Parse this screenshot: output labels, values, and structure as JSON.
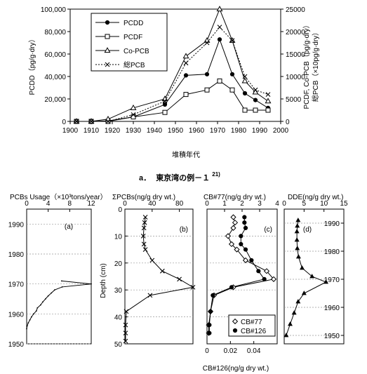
{
  "top": {
    "caption_prefix": "a．",
    "caption_text": "東京湾の例－１",
    "caption_sup": "21)",
    "xlabel": "堆積年代",
    "ylabel_left": "PCDD（pg/g·dry）",
    "ylabel_right_1": "PCDF, Co-PCB（pg/g·dry）",
    "ylabel_right_2": "総PCB（×10pg/g·dry）"
  },
  "bottom": {
    "panels": [
      {
        "title": "PCBs Usage（×10³tons/year）",
        "tag": "(a)"
      },
      {
        "title": "ΣPCBs(ng/g dry wt.)",
        "tag": "(b)"
      },
      {
        "title": "CB#77(ng/g dry wt.)",
        "tag": "(c)"
      },
      {
        "title": "DDE(ng/g dry wt.)",
        "tag": "(d)"
      }
    ],
    "depth_label": "Depth (cm)",
    "cb126_label": "CB#126(ng/g dry wt.)"
  },
  "chart_data": [
    {
      "type": "line",
      "xlabel": "堆積年代",
      "ylabel": "PCDD（pg/g·dry）",
      "y2label": "PCDF, Co-PCB（pg/g·dry） 総PCB（×10pg/g·dry）",
      "xlim": [
        1900,
        2000
      ],
      "xticks": [
        1900,
        1910,
        1920,
        1930,
        1940,
        1950,
        1960,
        1970,
        1980,
        1990,
        2000
      ],
      "ylim": [
        0,
        100000
      ],
      "yticks": [
        0,
        20000,
        40000,
        60000,
        80000,
        100000
      ],
      "ytick_labels": [
        "0",
        "20,000",
        "40,000",
        "60,000",
        "80,000",
        "100,000"
      ],
      "y2lim": [
        0,
        25000
      ],
      "y2ticks": [
        0,
        5000,
        10000,
        15000,
        20000,
        25000
      ],
      "legend": "top-left",
      "series": [
        {
          "name": "PCDD",
          "axis": "left",
          "marker": "filled-circle",
          "line": "solid",
          "x": [
            1903,
            1910,
            1918,
            1930,
            1945,
            1955,
            1965,
            1971,
            1977,
            1983,
            1988,
            1994
          ],
          "y": [
            0,
            0,
            500,
            4000,
            15000,
            41000,
            42000,
            73000,
            42000,
            25000,
            19000,
            12000
          ]
        },
        {
          "name": "PCDF",
          "axis": "right",
          "marker": "open-square",
          "line": "solid",
          "x": [
            1903,
            1910,
            1918,
            1930,
            1945,
            1955,
            1965,
            1971,
            1977,
            1983,
            1988,
            1994
          ],
          "y": [
            0,
            0,
            0,
            1000,
            2000,
            6000,
            7000,
            9000,
            7000,
            2500,
            2500,
            2500
          ]
        },
        {
          "name": "Co-PCB",
          "axis": "right",
          "marker": "open-triangle",
          "line": "solid",
          "x": [
            1903,
            1910,
            1918,
            1930,
            1945,
            1955,
            1965,
            1971,
            1977,
            1983,
            1988,
            1994
          ],
          "y": [
            0,
            0,
            500,
            3000,
            5000,
            14500,
            18000,
            25000,
            18000,
            9000,
            6500,
            4500
          ]
        },
        {
          "name": "総PCB",
          "axis": "right",
          "marker": "x",
          "line": "dotted",
          "x": [
            1903,
            1910,
            1918,
            1930,
            1945,
            1955,
            1965,
            1971,
            1977,
            1983,
            1988,
            1994
          ],
          "y": [
            0,
            0,
            0,
            1500,
            4500,
            13000,
            17500,
            21000,
            18000,
            10000,
            7000,
            6000
          ]
        }
      ]
    },
    {
      "type": "line",
      "title": "PCBs Usage（×10³tons/year）",
      "xlim": [
        0,
        12
      ],
      "xticks": [
        0,
        4,
        8,
        12
      ],
      "ylim": [
        1950,
        1995
      ],
      "yticks": [
        1950,
        1960,
        1970,
        1980,
        1990
      ],
      "annotation": "(a)",
      "series": [
        {
          "name": "",
          "x": [
            0,
            0.1,
            0.3,
            0.6,
            0.9,
            1.3,
            1.8,
            2.0,
            2.6,
            3.0,
            3.5,
            4.0,
            4.6,
            5.2,
            6.6,
            12,
            6.5
          ],
          "y": [
            1955,
            1956,
            1957,
            1958,
            1959,
            1960,
            1961,
            1962,
            1963,
            1964,
            1965,
            1966,
            1967,
            1968,
            1969,
            1970,
            1971
          ]
        }
      ]
    },
    {
      "type": "line",
      "title": "ΣPCBs(ng/g dry wt.)",
      "xlim": [
        0,
        100
      ],
      "xticks": [
        0,
        40,
        80
      ],
      "ylim": [
        50,
        0
      ],
      "yticks": [
        0,
        10,
        20,
        30,
        40,
        50
      ],
      "ylabel": "Depth (cm)",
      "annotation": "(b)",
      "series": [
        {
          "name": "",
          "marker": "x",
          "x": [
            30,
            29,
            28,
            27,
            28,
            30,
            40,
            55,
            80,
            100,
            37,
            2,
            1,
            1,
            1
          ],
          "y": [
            3,
            5,
            7,
            10,
            13,
            15,
            19,
            23,
            26,
            29,
            32,
            38,
            43,
            46,
            49
          ]
        }
      ]
    },
    {
      "type": "line",
      "title": "CB#77(ng/g dry wt.)",
      "xlim": [
        0,
        4
      ],
      "xticks": [
        0,
        1,
        2,
        3,
        4
      ],
      "x2label": "CB#126(ng/g dry wt.)",
      "x2lim": [
        0,
        0.06
      ],
      "x2ticks": [
        0,
        0.02,
        0.04
      ],
      "ylim": [
        50,
        0
      ],
      "annotation": "(c)",
      "legend": "bottom-right",
      "series": [
        {
          "name": "CB#77",
          "marker": "open-diamond",
          "x": [
            1.5,
            1.6,
            1.5,
            1.2,
            1.4,
            1.7,
            2.2,
            3.4,
            3.8,
            1.5,
            0.4,
            0.2,
            0.1,
            0.1
          ],
          "y": [
            3,
            5,
            7,
            10,
            13,
            15,
            19,
            23,
            26,
            29,
            32,
            38,
            43,
            46
          ]
        },
        {
          "name": "CB#126",
          "marker": "filled-circle",
          "x": [
            0.032,
            0.032,
            0.033,
            0.029,
            0.029,
            0.033,
            0.038,
            0.044,
            0.049,
            0.021,
            0.005,
            0.003,
            0.002,
            0.002
          ],
          "y": [
            3,
            5,
            7,
            10,
            13,
            15,
            19,
            23,
            26,
            29,
            32,
            38,
            43,
            46
          ]
        }
      ]
    },
    {
      "type": "line",
      "title": "DDE(ng/g dry wt.)",
      "xlim": [
        0,
        15
      ],
      "xticks": [
        0,
        5,
        10,
        15
      ],
      "ylim": [
        1947,
        1995
      ],
      "yticks": [
        1950,
        1960,
        1970,
        1980,
        1990
      ],
      "annotation": "(d)",
      "series": [
        {
          "name": "",
          "marker": "filled-triangle",
          "x": [
            3.5,
            3.3,
            3.2,
            3.2,
            3.3,
            3.6,
            4.5,
            7,
            10.5,
            5,
            3.5,
            2.5,
            1.5,
            0.5
          ],
          "y": [
            1991,
            1989,
            1987,
            1984,
            1981,
            1978,
            1974,
            1971,
            1969,
            1965,
            1962,
            1958,
            1954,
            1950
          ]
        }
      ]
    }
  ]
}
